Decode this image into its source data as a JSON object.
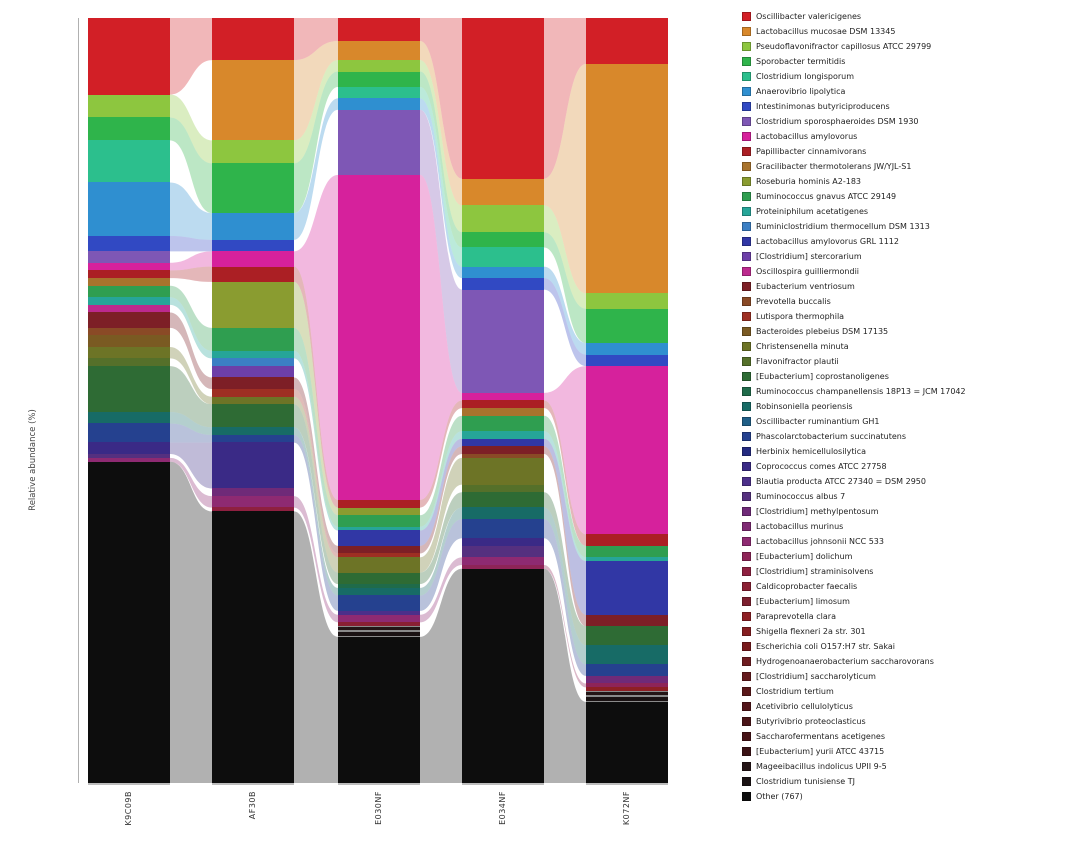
{
  "chart_data": {
    "type": "bar",
    "variant": "stacked-alluvial",
    "title": "",
    "xlabel": "",
    "ylabel": "Relative abundance (%)",
    "ylim": [
      0,
      100
    ],
    "yticks": [
      100,
      80,
      60,
      40,
      20,
      0
    ],
    "grid": false,
    "legend_position": "right",
    "ribbon_opacity": 0.32,
    "categories": [
      "K9C09B",
      "AF30B",
      "E030NF",
      "E034NF",
      "K072NF"
    ],
    "series": [
      {
        "name": "Oscillibacter valericigenes",
        "color": "#d21f26",
        "values": [
          10.0,
          5.5,
          3.0,
          21.0,
          6.0
        ]
      },
      {
        "name": "Lactobacillus mucosae DSM 13345",
        "color": "#d8882b",
        "values": [
          0,
          10.5,
          2.5,
          3.5,
          30.0
        ]
      },
      {
        "name": "Pseudoflavonifractor capillosus ATCC 29799",
        "color": "#8dc63f",
        "values": [
          3.0,
          3.0,
          1.5,
          3.5,
          2.0
        ]
      },
      {
        "name": "Sporobacter termitidis",
        "color": "#2fb44b",
        "values": [
          3.0,
          6.5,
          2.0,
          2.0,
          4.5
        ]
      },
      {
        "name": "Clostridium longisporum",
        "color": "#2cbf8d",
        "values": [
          5.5,
          0,
          1.5,
          2.5,
          0
        ]
      },
      {
        "name": "Anaerovibrio lipolytica",
        "color": "#2f8fd0",
        "values": [
          7.0,
          3.5,
          1.5,
          1.5,
          1.5
        ]
      },
      {
        "name": "Intestinimonas butyriciproducens",
        "color": "#3149c3",
        "values": [
          2.0,
          1.5,
          0,
          1.5,
          1.5
        ]
      },
      {
        "name": "Clostridium sporosphaeroides DSM 1930",
        "color": "#7e57b5",
        "values": [
          1.5,
          0,
          8.5,
          13.5,
          0
        ]
      },
      {
        "name": "Lactobacillus amylovorus",
        "color": "#d6219c",
        "values": [
          1.0,
          2.0,
          42.5,
          1.0,
          22.0
        ]
      },
      {
        "name": "Papillibacter cinnamivorans",
        "color": "#ab1f24",
        "values": [
          1.0,
          2.0,
          1.0,
          1.0,
          1.5
        ]
      },
      {
        "name": "Gracilibacter thermotolerans JW/YJL-S1",
        "color": "#a8732d",
        "values": [
          1.0,
          0,
          0,
          1.0,
          0
        ]
      },
      {
        "name": "Roseburia hominis A2-183",
        "color": "#8a9c30",
        "values": [
          0,
          6.0,
          1.0,
          0,
          0
        ]
      },
      {
        "name": "Ruminococcus gnavus ATCC 29149",
        "color": "#2f9e50",
        "values": [
          1.5,
          3.0,
          1.5,
          2.0,
          1.5
        ]
      },
      {
        "name": "Proteiniphilum acetatigenes",
        "color": "#26a598",
        "values": [
          1.0,
          1.0,
          0.5,
          1.0,
          0.5
        ]
      },
      {
        "name": "Ruminiclostridium thermocellum DSM 1313",
        "color": "#3b7fc4",
        "values": [
          0,
          1.0,
          0,
          0,
          0
        ]
      },
      {
        "name": "Lactobacillus amylovorus GRL 1112",
        "color": "#3137a5",
        "values": [
          0,
          0,
          2.0,
          1.0,
          7.0
        ]
      },
      {
        "name": "[Clostridium] stercorarium",
        "color": "#6d3fa8",
        "values": [
          0,
          1.5,
          0,
          0,
          0
        ]
      },
      {
        "name": "Oscillospira guilliermondii",
        "color": "#bc2a8e",
        "values": [
          1.0,
          0,
          0,
          0,
          0
        ]
      },
      {
        "name": "Eubacterium ventriosum",
        "color": "#7d1f26",
        "values": [
          2.0,
          1.5,
          1.0,
          1.0,
          1.5
        ]
      },
      {
        "name": "Prevotella buccalis",
        "color": "#8a4a26",
        "values": [
          1.0,
          0,
          0,
          0.5,
          0
        ]
      },
      {
        "name": "Lutispora thermophila",
        "color": "#9e2f23",
        "values": [
          0,
          1.0,
          0.5,
          0,
          0
        ]
      },
      {
        "name": "Bacteroides plebeius DSM 17135",
        "color": "#7a5a22",
        "values": [
          1.5,
          0,
          0,
          0,
          0
        ]
      },
      {
        "name": "Christensenella minuta",
        "color": "#6d7426",
        "values": [
          1.5,
          1.0,
          2.0,
          3.5,
          0
        ]
      },
      {
        "name": "Flavonifractor plautii",
        "color": "#55702a",
        "values": [
          1.0,
          0,
          0,
          1.0,
          0
        ]
      },
      {
        "name": "[Eubacterium] coprostanoligenes",
        "color": "#2e6b34",
        "values": [
          6.0,
          3.0,
          1.5,
          2.0,
          2.5
        ]
      },
      {
        "name": "Ruminococcus champanellensis 18P13 = JCM 17042",
        "color": "#1f6b4a",
        "values": [
          0,
          0,
          0.5,
          0,
          0
        ]
      },
      {
        "name": "Robinsoniella peoriensis",
        "color": "#176b66",
        "values": [
          1.5,
          1.0,
          1.0,
          1.5,
          2.5
        ]
      },
      {
        "name": "Oscillibacter ruminantium GH1",
        "color": "#1f5e86",
        "values": [
          0,
          0,
          0,
          0,
          0
        ]
      },
      {
        "name": "Phascolarctobacterium succinatutens",
        "color": "#25418f",
        "values": [
          2.5,
          1.0,
          2.0,
          2.5,
          1.5
        ]
      },
      {
        "name": "Herbinix hemicellulosilytica",
        "color": "#232a80",
        "values": [
          0,
          0,
          0,
          0,
          0
        ]
      },
      {
        "name": "Coprococcus comes ATCC 27758",
        "color": "#3a2a86",
        "values": [
          1.5,
          6.0,
          0,
          1.0,
          0
        ]
      },
      {
        "name": "Blautia producta ATCC 27340 = DSM 2950",
        "color": "#4c2f8a",
        "values": [
          0,
          0,
          0.5,
          0,
          0
        ]
      },
      {
        "name": "Ruminococcus albus 7",
        "color": "#55307f",
        "values": [
          0.5,
          0,
          0,
          1.5,
          0
        ]
      },
      {
        "name": "[Clostridium] methylpentosum",
        "color": "#6f2a78",
        "values": [
          0,
          1.0,
          0,
          0,
          1.0
        ]
      },
      {
        "name": "Lactobacillus murinus",
        "color": "#7f2a74",
        "values": [
          0,
          0,
          0,
          0,
          0
        ]
      },
      {
        "name": "Lactobacillus johnsonii NCC 533",
        "color": "#8e2a72",
        "values": [
          0.5,
          1.5,
          1.0,
          1.0,
          0
        ]
      },
      {
        "name": "[Eubacterium] dolichum",
        "color": "#8e2458",
        "values": [
          0,
          0,
          0,
          0.5,
          0.5
        ]
      },
      {
        "name": "[Clostridium] straminisolvens",
        "color": "#8e2040",
        "values": [
          0,
          0.5,
          0,
          0,
          0
        ]
      },
      {
        "name": "Caldicoprobacter faecalis",
        "color": "#8a1f33",
        "values": [
          0,
          0,
          0.5,
          0,
          0
        ]
      },
      {
        "name": "[Eubacterium] limosum",
        "color": "#7c1f2e",
        "values": [
          0,
          0,
          0,
          0,
          0
        ]
      },
      {
        "name": "Paraprevotella clara",
        "color": "#8e1f24",
        "values": [
          0,
          0,
          0,
          0,
          0.5
        ]
      },
      {
        "name": "Shigella flexneri 2a str. 301",
        "color": "#851d20",
        "values": [
          0,
          0,
          0,
          0,
          0
        ]
      },
      {
        "name": "Escherichia coli O157:H7 str. Sakai",
        "color": "#78191c",
        "values": [
          0,
          0,
          0,
          0,
          0
        ]
      },
      {
        "name": "Hydrogenoanaerobacterium saccharovorans",
        "color": "#6e1c20",
        "values": [
          0,
          0,
          0,
          0,
          0
        ]
      },
      {
        "name": "[Clostridium] saccharolyticum",
        "color": "#641a1d",
        "values": [
          0,
          0,
          0,
          0,
          0
        ]
      },
      {
        "name": "Clostridium tertium",
        "color": "#5a1719",
        "values": [
          0,
          0,
          0,
          0,
          0
        ]
      },
      {
        "name": "Acetivibrio cellulolyticus",
        "color": "#521519",
        "values": [
          0,
          0,
          0,
          0,
          0
        ]
      },
      {
        "name": "Butyrivibrio proteoclasticus",
        "color": "#4a1417",
        "values": [
          0,
          0,
          0,
          0,
          0
        ]
      },
      {
        "name": "Saccharofermentans acetigenes",
        "color": "#461216",
        "values": [
          0,
          0,
          0,
          0,
          0
        ]
      },
      {
        "name": "[Eubacterium] yurii ATCC 43715",
        "color": "#3a1114",
        "values": [
          0,
          0,
          0,
          0,
          0
        ]
      },
      {
        "name": "Mageeibacillus indolicus UPII 9-5",
        "color": "#241516",
        "outlined": true,
        "values": [
          0,
          0,
          0.7,
          0,
          0.7
        ]
      },
      {
        "name": "Clostridium tunisiense TJ",
        "color": "#1a1213",
        "outlined": true,
        "values": [
          0,
          0,
          0.7,
          0,
          0.7
        ]
      },
      {
        "name": "Other (767)",
        "color": "#0d0d0d",
        "values": [
          42.0,
          35.5,
          19.1,
          28.0,
          10.6
        ]
      }
    ]
  }
}
